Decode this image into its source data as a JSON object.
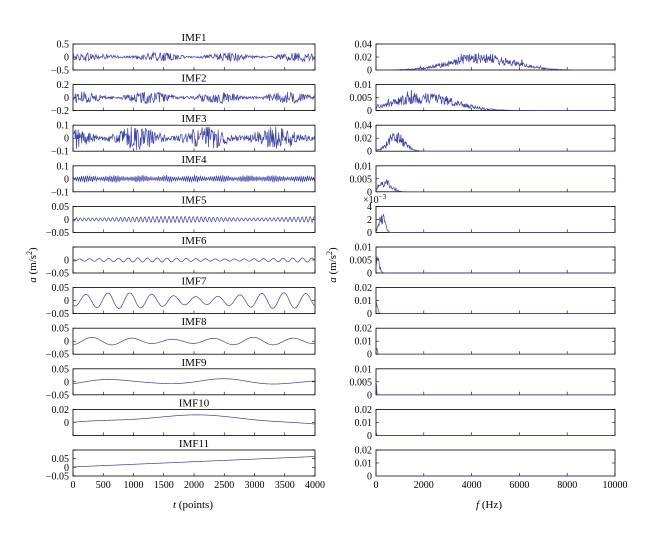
{
  "colors": {
    "signal": "#3b3fa8",
    "frame": "#000000",
    "background": "#ffffff"
  },
  "axis_labels": {
    "time": {
      "symbol": "t",
      "unit": "(points)"
    },
    "freq": {
      "symbol": "f",
      "unit": "(Hz)"
    },
    "amp": {
      "symbol": "a",
      "unit": "(m/s",
      "exp": "2",
      "close": ")"
    }
  },
  "exponent_label": {
    "base": "×10",
    "exp": "−3"
  },
  "chart_data": [
    {
      "type": "line",
      "side": "time",
      "xlabel": "t (points)",
      "ylabel": "a (m/s²)",
      "xlim": [
        0,
        4000
      ],
      "xticks": [
        "0",
        "500",
        "1000",
        "1500",
        "2000",
        "2500",
        "3000",
        "3500",
        "4000"
      ],
      "series": [
        {
          "name": "IMF1",
          "ylim": [
            -0.5,
            0.5
          ],
          "yticks": [
            "0.5",
            "0",
            "−0.5"
          ],
          "shape": "noise",
          "amplitude": 0.15
        },
        {
          "name": "IMF2",
          "ylim": [
            -0.2,
            0.2
          ],
          "yticks": [
            "0.2",
            "0",
            "−0.2"
          ],
          "shape": "noise",
          "amplitude": 0.08
        },
        {
          "name": "IMF3",
          "ylim": [
            -0.1,
            0.1
          ],
          "yticks": [
            "0.1",
            "0",
            "−0.1"
          ],
          "shape": "noise",
          "amplitude": 0.08
        },
        {
          "name": "IMF4",
          "ylim": [
            -0.1,
            0.1
          ],
          "yticks": [
            "0.1",
            "0",
            "−0.1"
          ],
          "shape": "burst",
          "amplitude": 0.03
        },
        {
          "name": "IMF5",
          "ylim": [
            -0.05,
            0.05
          ],
          "yticks": [
            "0.05",
            "0",
            "−0.05"
          ],
          "shape": "wave",
          "amplitude": 0.012,
          "cycles": 60
        },
        {
          "name": "IMF6",
          "ylim": [
            -0.05,
            0.05
          ],
          "yticks": [
            "",
            "0",
            "−0.05"
          ],
          "shape": "wave",
          "amplitude": 0.008,
          "cycles": 25
        },
        {
          "name": "IMF7",
          "ylim": [
            -0.05,
            0.05
          ],
          "yticks": [
            "0.05",
            "0",
            "−0.05"
          ],
          "shape": "wave",
          "amplitude": 0.03,
          "cycles": 11
        },
        {
          "name": "IMF8",
          "ylim": [
            -0.05,
            0.05
          ],
          "yticks": [
            "0.05",
            "0",
            "−0.05"
          ],
          "shape": "wave",
          "amplitude": 0.015,
          "cycles": 6
        },
        {
          "name": "IMF9",
          "ylim": [
            -0.05,
            0.05
          ],
          "yticks": [
            "0.05",
            "0",
            "−0.05"
          ],
          "shape": "wave",
          "amplitude": 0.012,
          "cycles": 2.2
        },
        {
          "name": "IMF10",
          "ylim": [
            -0.02,
            0.02
          ],
          "yticks": [
            "0.02",
            "0",
            ""
          ],
          "shape": "wave",
          "amplitude": 0.012,
          "cycles": 0.55
        },
        {
          "name": "IMF11",
          "ylim": [
            -0.05,
            0.05
          ],
          "yticks": [
            "",
            "0.05",
            "0",
            "−0.05"
          ],
          "shape": "trend",
          "start": -0.015,
          "end": 0.025
        }
      ]
    },
    {
      "type": "line",
      "side": "freq",
      "xlabel": "f (Hz)",
      "xlim": [
        0,
        10000
      ],
      "xticks": [
        "0",
        "2000",
        "4000",
        "6000",
        "8000",
        "10000"
      ],
      "series": [
        {
          "name": "IMF1",
          "ylim": [
            0,
            0.045
          ],
          "yticks": [
            "0.04",
            "0.02",
            "0"
          ],
          "peak_hz": 4400,
          "width_hz": 1300,
          "peak_value": 0.03
        },
        {
          "name": "IMF2",
          "ylim": [
            0,
            0.011
          ],
          "yticks": [
            "0.01",
            "0.005",
            "0"
          ],
          "peak_hz": 2000,
          "width_hz": 1300,
          "peak_value": 0.008
        },
        {
          "name": "IMF3",
          "ylim": [
            0,
            0.045
          ],
          "yticks": [
            "0.04",
            "0.02",
            "0"
          ],
          "peak_hz": 850,
          "width_hz": 350,
          "peak_value": 0.035
        },
        {
          "name": "IMF4",
          "ylim": [
            0,
            0.01
          ],
          "yticks": [
            "0.01",
            "0.005",
            "0"
          ],
          "peak_hz": 400,
          "width_hz": 250,
          "peak_value": 0.005
        },
        {
          "name": "IMF5",
          "ylim": [
            0,
            0.0042
          ],
          "yticks": [
            "4",
            "2",
            "0"
          ],
          "peak_hz": 250,
          "width_hz": 120,
          "peak_value": 0.0035
        },
        {
          "name": "IMF6",
          "ylim": [
            0,
            0.011
          ],
          "yticks": [
            "0.01",
            "0.005",
            "0"
          ],
          "peak_hz": 80,
          "width_hz": 80,
          "peak_value": 0.008
        },
        {
          "name": "IMF7",
          "ylim": [
            0,
            0.022
          ],
          "yticks": [
            "0.02",
            "0.01",
            "0"
          ],
          "peak_hz": 40,
          "width_hz": 40,
          "peak_value": 0.012
        },
        {
          "name": "IMF8",
          "ylim": [
            0,
            0.022
          ],
          "yticks": [
            "0.02",
            "0.01",
            "0"
          ],
          "peak_hz": 25,
          "width_hz": 25,
          "peak_value": 0.008
        },
        {
          "name": "IMF9",
          "ylim": [
            0,
            0.011
          ],
          "yticks": [
            "0.01",
            "0.005",
            "0"
          ],
          "peak_hz": 15,
          "width_hz": 15,
          "peak_value": 0.007
        },
        {
          "name": "IMF10",
          "ylim": [
            0,
            0.022
          ],
          "yticks": [
            "0.02",
            "0.01",
            "0"
          ],
          "peak_hz": 8,
          "width_hz": 10,
          "peak_value": 0.004
        },
        {
          "name": "IMF11",
          "ylim": [
            0,
            0.022
          ],
          "yticks": [
            "0.02",
            "0.01",
            "0"
          ],
          "peak_hz": 4,
          "width_hz": 6,
          "peak_value": 0.002
        }
      ]
    }
  ]
}
